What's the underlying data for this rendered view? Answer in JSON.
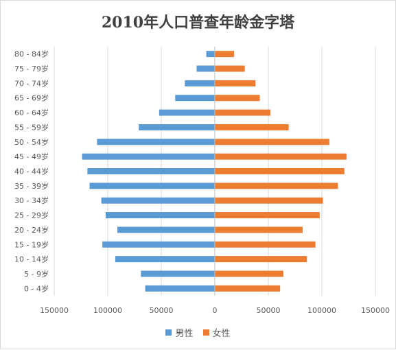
{
  "chart_data": {
    "type": "bar",
    "orientation": "horizontal",
    "layout": "population-pyramid",
    "title": "2010年人口普查年龄金字塔",
    "categories": [
      "0 - 4岁",
      "5 - 9岁",
      "10 - 14岁",
      "15 - 19岁",
      "20 - 24岁",
      "25 - 29岁",
      "30 - 34岁",
      "35 - 39岁",
      "40 - 44岁",
      "45 - 49岁",
      "50 - 54岁",
      "55 - 59岁",
      "60 - 64岁",
      "65 - 69岁",
      "70 - 74岁",
      "75 - 79岁",
      "80 - 84岁"
    ],
    "series": [
      {
        "name": "男性",
        "color": "#5b9bd5",
        "side": "left",
        "values": [
          65000,
          69000,
          93000,
          105000,
          91000,
          102000,
          106000,
          117000,
          119000,
          124000,
          110000,
          71000,
          52000,
          37000,
          28000,
          17000,
          8000
        ]
      },
      {
        "name": "女性",
        "color": "#ed7d31",
        "side": "right",
        "values": [
          61000,
          64000,
          86000,
          94000,
          82000,
          98000,
          101000,
          115000,
          121000,
          123000,
          107000,
          69000,
          52000,
          42000,
          38000,
          28000,
          18000
        ]
      }
    ],
    "x_ticks": [
      "150000",
      "100000",
      "50000",
      "0",
      "50000",
      "100000",
      "150000"
    ],
    "negative_tick_color": "#ff0000",
    "positive_tick_color": "#595959",
    "xlim": [
      -150000,
      150000
    ],
    "grid": "vertical",
    "legend_position": "bottom"
  }
}
